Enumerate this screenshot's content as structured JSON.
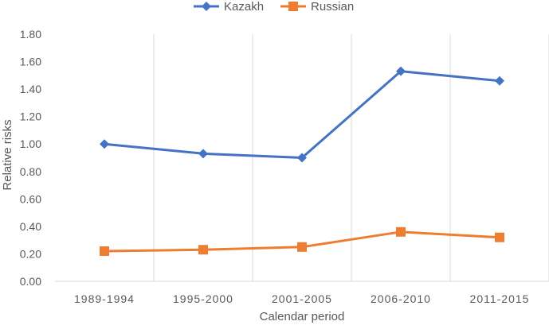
{
  "chart_data": {
    "type": "line",
    "categories": [
      "1989-1994",
      "1995-2000",
      "2001-2005",
      "2006-2010",
      "2011-2015"
    ],
    "series": [
      {
        "name": "Kazakh",
        "values": [
          1.0,
          0.93,
          0.9,
          1.53,
          1.46
        ],
        "color": "#4472C4",
        "marker": "diamond"
      },
      {
        "name": "Russian",
        "values": [
          0.22,
          0.23,
          0.25,
          0.36,
          0.32
        ],
        "color": "#ED7D31",
        "marker": "square"
      }
    ],
    "title": "",
    "xlabel": "Calendar period",
    "ylabel": "Relative risks",
    "ylim": [
      0,
      1.8
    ],
    "ytick_step": 0.2,
    "ytick_labels": [
      "0.00",
      "0.20",
      "0.40",
      "0.60",
      "0.80",
      "1.00",
      "1.20",
      "1.40",
      "1.60",
      "1.80"
    ],
    "grid": "vertical",
    "legend_position": "top"
  }
}
